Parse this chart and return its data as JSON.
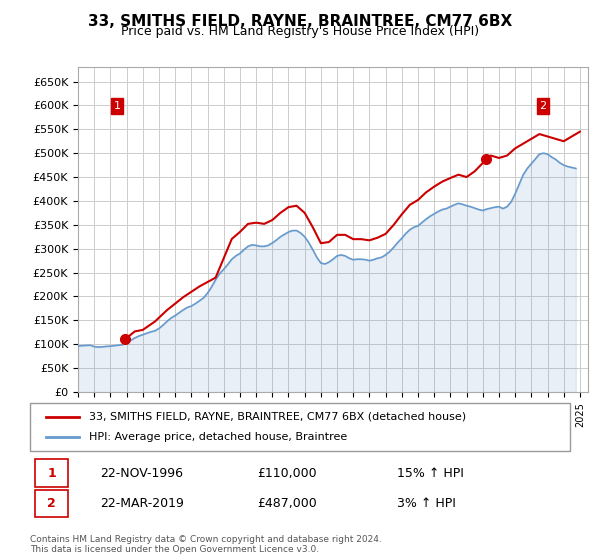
{
  "title": "33, SMITHS FIELD, RAYNE, BRAINTREE, CM77 6BX",
  "subtitle": "Price paid vs. HM Land Registry's House Price Index (HPI)",
  "xlabel": "",
  "ylabel": "",
  "ylim": [
    0,
    680000
  ],
  "yticks": [
    0,
    50000,
    100000,
    150000,
    200000,
    250000,
    300000,
    350000,
    400000,
    450000,
    500000,
    550000,
    600000,
    650000
  ],
  "ytick_labels": [
    "£0",
    "£50K",
    "£100K",
    "£150K",
    "£200K",
    "£250K",
    "£300K",
    "£350K",
    "£400K",
    "£450K",
    "£500K",
    "£550K",
    "£600K",
    "£650K"
  ],
  "xlim_start": 1994.0,
  "xlim_end": 2025.5,
  "background_color": "#ffffff",
  "plot_bg_color": "#ffffff",
  "grid_color": "#cccccc",
  "property_color": "#cc0000",
  "hpi_color": "#6699cc",
  "legend_label_property": "33, SMITHS FIELD, RAYNE, BRAINTREE, CM77 6BX (detached house)",
  "legend_label_hpi": "HPI: Average price, detached house, Braintree",
  "sale1_date": 1996.9,
  "sale1_price": 110000,
  "sale1_label": "1",
  "sale1_annotation": "22-NOV-1996",
  "sale1_value_str": "£110,000",
  "sale1_hpi_str": "15% ↑ HPI",
  "sale2_date": 2019.22,
  "sale2_price": 487000,
  "sale2_label": "2",
  "sale2_annotation": "22-MAR-2019",
  "sale2_value_str": "£487,000",
  "sale2_hpi_str": "3% ↑ HPI",
  "footer": "Contains HM Land Registry data © Crown copyright and database right 2024.\nThis data is licensed under the Open Government Licence v3.0.",
  "hpi_data_x": [
    1994.0,
    1994.25,
    1994.5,
    1994.75,
    1995.0,
    1995.25,
    1995.5,
    1995.75,
    1996.0,
    1996.25,
    1996.5,
    1996.75,
    1997.0,
    1997.25,
    1997.5,
    1997.75,
    1998.0,
    1998.25,
    1998.5,
    1998.75,
    1999.0,
    1999.25,
    1999.5,
    1999.75,
    2000.0,
    2000.25,
    2000.5,
    2000.75,
    2001.0,
    2001.25,
    2001.5,
    2001.75,
    2002.0,
    2002.25,
    2002.5,
    2002.75,
    2003.0,
    2003.25,
    2003.5,
    2003.75,
    2004.0,
    2004.25,
    2004.5,
    2004.75,
    2005.0,
    2005.25,
    2005.5,
    2005.75,
    2006.0,
    2006.25,
    2006.5,
    2006.75,
    2007.0,
    2007.25,
    2007.5,
    2007.75,
    2008.0,
    2008.25,
    2008.5,
    2008.75,
    2009.0,
    2009.25,
    2009.5,
    2009.75,
    2010.0,
    2010.25,
    2010.5,
    2010.75,
    2011.0,
    2011.25,
    2011.5,
    2011.75,
    2012.0,
    2012.25,
    2012.5,
    2012.75,
    2013.0,
    2013.25,
    2013.5,
    2013.75,
    2014.0,
    2014.25,
    2014.5,
    2014.75,
    2015.0,
    2015.25,
    2015.5,
    2015.75,
    2016.0,
    2016.25,
    2016.5,
    2016.75,
    2017.0,
    2017.25,
    2017.5,
    2017.75,
    2018.0,
    2018.25,
    2018.5,
    2018.75,
    2019.0,
    2019.25,
    2019.5,
    2019.75,
    2020.0,
    2020.25,
    2020.5,
    2020.75,
    2021.0,
    2021.25,
    2021.5,
    2021.75,
    2022.0,
    2022.25,
    2022.5,
    2022.75,
    2023.0,
    2023.25,
    2023.5,
    2023.75,
    2024.0,
    2024.25,
    2024.5,
    2024.75
  ],
  "hpi_data_y": [
    96000,
    97000,
    97500,
    98000,
    95000,
    94000,
    94500,
    95500,
    96000,
    97000,
    98000,
    99000,
    103000,
    108000,
    113000,
    117000,
    120000,
    123000,
    126000,
    128000,
    133000,
    140000,
    148000,
    155000,
    160000,
    166000,
    172000,
    177000,
    180000,
    185000,
    191000,
    197000,
    207000,
    220000,
    235000,
    248000,
    257000,
    267000,
    278000,
    285000,
    290000,
    298000,
    305000,
    308000,
    307000,
    305000,
    305000,
    307000,
    312000,
    318000,
    325000,
    330000,
    335000,
    338000,
    338000,
    333000,
    325000,
    313000,
    298000,
    282000,
    270000,
    268000,
    272000,
    278000,
    285000,
    287000,
    285000,
    280000,
    277000,
    278000,
    278000,
    277000,
    275000,
    277000,
    280000,
    282000,
    287000,
    294000,
    303000,
    313000,
    322000,
    332000,
    340000,
    345000,
    348000,
    355000,
    362000,
    368000,
    373000,
    378000,
    382000,
    384000,
    388000,
    392000,
    395000,
    393000,
    390000,
    388000,
    385000,
    382000,
    380000,
    383000,
    385000,
    387000,
    388000,
    384000,
    388000,
    398000,
    415000,
    435000,
    455000,
    468000,
    478000,
    488000,
    498000,
    500000,
    498000,
    492000,
    487000,
    480000,
    475000,
    472000,
    470000,
    468000
  ],
  "property_data_x": [
    1994.0,
    1996.9,
    1997.5,
    1998.0,
    1998.75,
    1999.5,
    2000.5,
    2001.5,
    2002.5,
    2003.5,
    2004.0,
    2004.5,
    2005.0,
    2005.5,
    2006.0,
    2006.5,
    2007.0,
    2007.5,
    2008.0,
    2008.5,
    2009.0,
    2009.5,
    2010.0,
    2010.5,
    2011.0,
    2011.5,
    2012.0,
    2012.5,
    2013.0,
    2013.5,
    2014.0,
    2014.5,
    2015.0,
    2015.5,
    2016.0,
    2016.5,
    2017.0,
    2017.5,
    2018.0,
    2018.5,
    2019.22,
    2019.5,
    2020.0,
    2020.5,
    2021.0,
    2021.5,
    2022.0,
    2022.5,
    2023.0,
    2023.5,
    2024.0,
    2024.5,
    2025.0
  ],
  "property_data_y": [
    null,
    110000,
    126750,
    130000,
    147500,
    171500,
    198500,
    221000,
    239500,
    320500,
    335000,
    352000,
    354500,
    352000,
    360000,
    375000,
    387000,
    390000,
    375000,
    345000,
    311500,
    314000,
    329000,
    329000,
    320000,
    320000,
    317500,
    323000,
    331000,
    350000,
    372000,
    392000,
    402000,
    418000,
    430000,
    440500,
    448000,
    455000,
    450000,
    462000,
    487000,
    495000,
    490000,
    495000,
    510000,
    520000,
    530000,
    540000,
    535000,
    530000,
    525000,
    535000,
    545000
  ]
}
